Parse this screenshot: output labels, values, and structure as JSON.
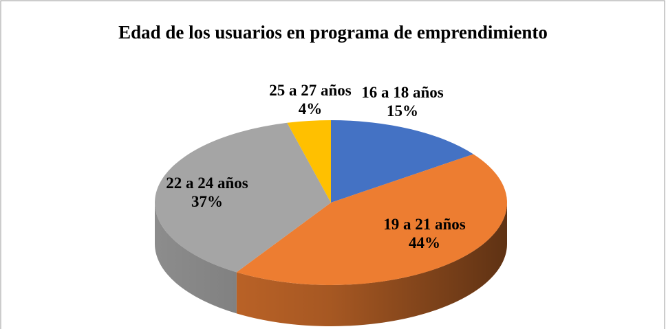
{
  "chart_data": {
    "type": "pie3d",
    "title": "Edad de los usuarios en programa de emprendimiento",
    "categories": [
      "16 a 18 años",
      "19 a 21 años",
      "22 a 24 años",
      "25 a 27 años"
    ],
    "values": [
      15,
      44,
      37,
      4
    ],
    "value_labels": [
      "15%",
      "44%",
      "37%",
      "4%"
    ],
    "colors": [
      "#4472c4",
      "#ed7d31",
      "#a5a5a5",
      "#ffc000"
    ]
  }
}
